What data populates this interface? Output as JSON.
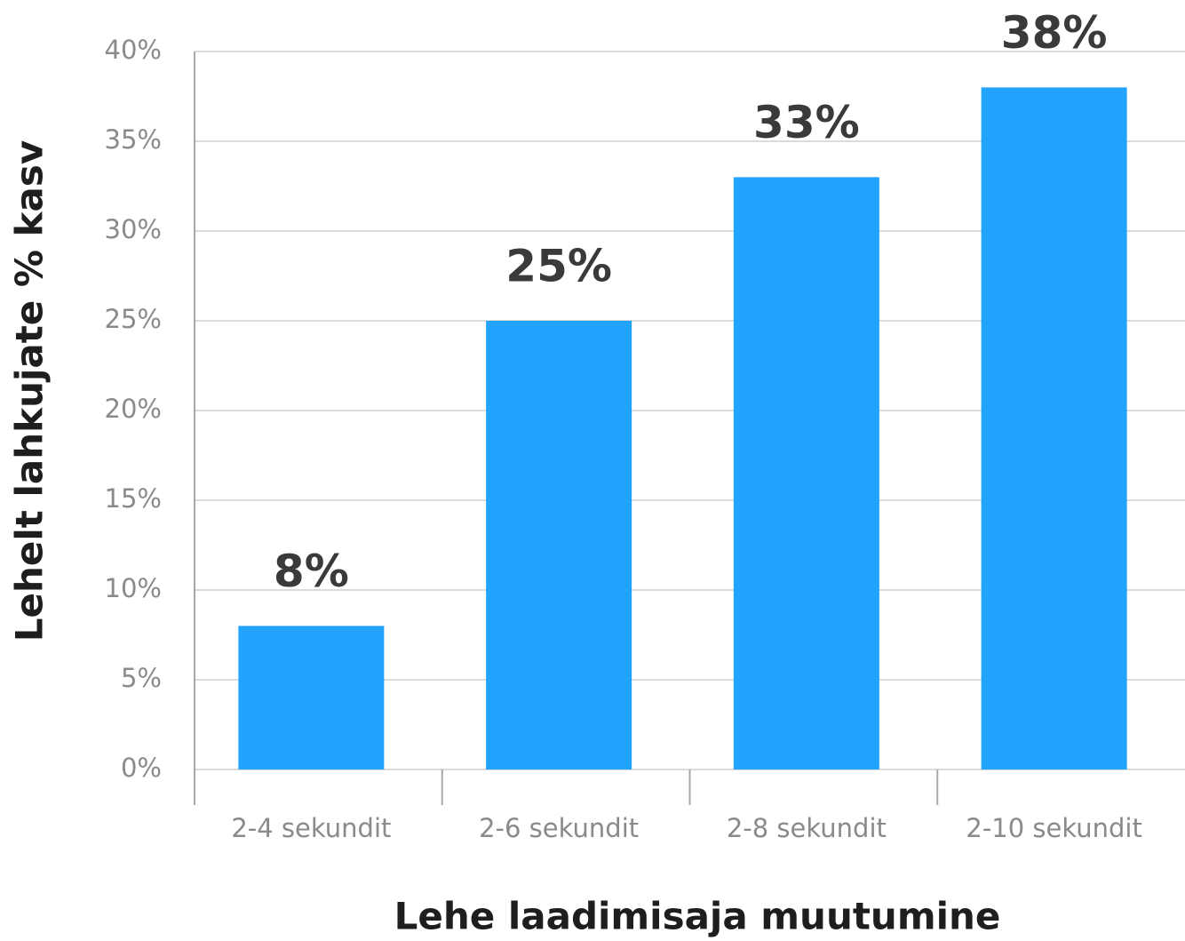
{
  "chart_data": {
    "type": "bar",
    "xlabel": "Lehe laadimisaja muutumine",
    "ylabel": "Lehelt lahkujate % kasv",
    "categories": [
      "2-4 sekundit",
      "2-6 sekundit",
      "2-8 sekundit",
      "2-10 sekundit"
    ],
    "values": [
      8,
      25,
      33,
      38
    ],
    "value_labels": [
      "8%",
      "25%",
      "33%",
      "38%"
    ],
    "color": "#22a4fe",
    "ylim": [
      0,
      40
    ],
    "yticks": [
      {
        "value": 0,
        "label": "0%"
      },
      {
        "value": 5,
        "label": "5%"
      },
      {
        "value": 10,
        "label": "10%"
      },
      {
        "value": 15,
        "label": "15%"
      },
      {
        "value": 20,
        "label": "20%"
      },
      {
        "value": 25,
        "label": "25%"
      },
      {
        "value": 30,
        "label": "30%"
      },
      {
        "value": 35,
        "label": "35%"
      },
      {
        "value": 40,
        "label": "40%"
      }
    ],
    "grid": true
  }
}
